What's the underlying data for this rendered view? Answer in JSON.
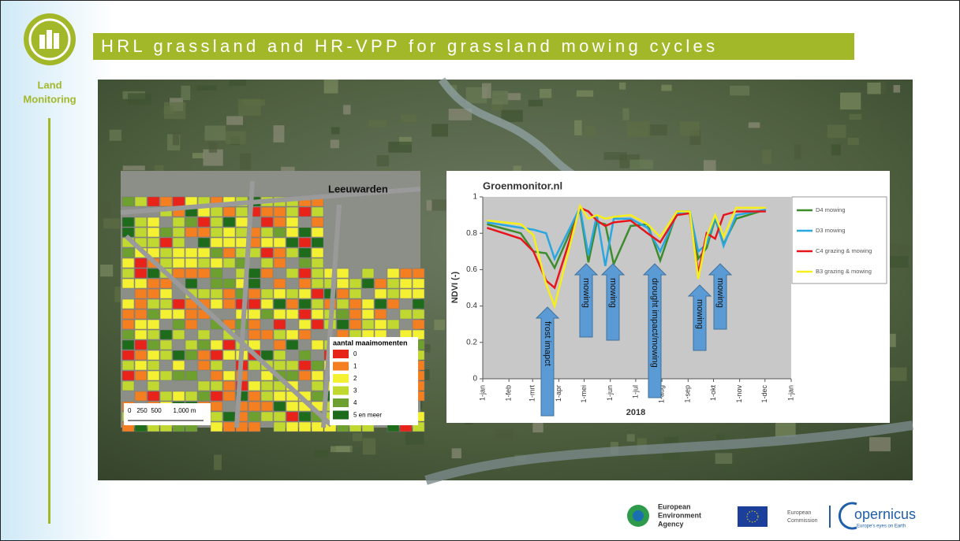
{
  "header": {
    "title": "HRL grassland and HR-VPP for grassland mowing cycles"
  },
  "sidebar": {
    "label_lines": [
      "Land",
      "Monitoring"
    ]
  },
  "map": {
    "city": "Leeuwarden",
    "legend": {
      "title": "aantal maaimomenten",
      "items": [
        {
          "label": "0",
          "color": "#e8231a"
        },
        {
          "label": "1",
          "color": "#f47f20"
        },
        {
          "label": "2",
          "color": "#f4f032"
        },
        {
          "label": "3",
          "color": "#c1d831"
        },
        {
          "label": "4",
          "color": "#6ea02f"
        },
        {
          "label": "5 en meer",
          "color": "#1f6b1c"
        }
      ]
    },
    "scale_labels": [
      "0",
      "250",
      "500",
      "1,000 m"
    ]
  },
  "chart_data": {
    "type": "line",
    "title": "Groenmonitor.nl",
    "y_label": "NDVI (-)",
    "x_label": "2018",
    "x": [
      5,
      45,
      60,
      75,
      85,
      115,
      125,
      135,
      145,
      155,
      175,
      195,
      210,
      230,
      245,
      255,
      265,
      275,
      285,
      300,
      335
    ],
    "xlim": [
      0,
      365
    ],
    "xticks": [
      {
        "value": 0,
        "label": "1-jan"
      },
      {
        "value": 31,
        "label": "1-feb"
      },
      {
        "value": 59,
        "label": "1-mrt"
      },
      {
        "value": 90,
        "label": "1-apr"
      },
      {
        "value": 120,
        "label": "1-mei"
      },
      {
        "value": 151,
        "label": "1-jun"
      },
      {
        "value": 181,
        "label": "1-jul"
      },
      {
        "value": 212,
        "label": "1-aug"
      },
      {
        "value": 243,
        "label": "1-sep"
      },
      {
        "value": 273,
        "label": "1-okt"
      },
      {
        "value": 304,
        "label": "1-nov"
      },
      {
        "value": 334,
        "label": "1-dec"
      },
      {
        "value": 365,
        "label": "1-jan"
      }
    ],
    "ylim": [
      0,
      1
    ],
    "yticks": [
      0,
      0.2,
      0.4,
      0.6,
      0.8,
      1
    ],
    "series": [
      {
        "name": "D4 mowing",
        "color": "#3c8c2e",
        "values": [
          0.85,
          0.8,
          0.7,
          0.69,
          0.61,
          0.93,
          0.64,
          0.86,
          0.85,
          0.63,
          0.84,
          0.85,
          0.65,
          0.92,
          0.92,
          0.66,
          0.72,
          0.88,
          0.74,
          0.88,
          0.93
        ]
      },
      {
        "name": "D3 mowing",
        "color": "#2aa7e0",
        "values": [
          0.86,
          0.83,
          0.82,
          0.8,
          0.66,
          0.94,
          0.68,
          0.9,
          0.62,
          0.88,
          0.88,
          0.83,
          0.7,
          0.91,
          0.92,
          0.7,
          0.74,
          0.89,
          0.73,
          0.9,
          0.93
        ]
      },
      {
        "name": "C4 grazing & mowing",
        "color": "#e8141b",
        "values": [
          0.83,
          0.77,
          0.7,
          0.54,
          0.5,
          0.94,
          0.92,
          0.87,
          0.84,
          0.86,
          0.87,
          0.8,
          0.75,
          0.9,
          0.91,
          0.58,
          0.8,
          0.77,
          0.9,
          0.92,
          0.92
        ]
      },
      {
        "name": "B3 grazing & mowing",
        "color": "#f7ef1a",
        "values": [
          0.87,
          0.85,
          0.79,
          0.52,
          0.4,
          0.95,
          0.88,
          0.9,
          0.88,
          0.89,
          0.9,
          0.85,
          0.78,
          0.92,
          0.92,
          0.55,
          0.78,
          0.9,
          0.78,
          0.94,
          0.94
        ]
      }
    ],
    "annotations": [
      "frost imapct",
      "mowing",
      "mowing",
      "drought impact/mowing",
      "mowing",
      "mowing"
    ]
  },
  "footer": {
    "eea_lines": [
      "European",
      "Environment",
      "Agency"
    ],
    "ec_lines": [
      "European",
      "Commission"
    ],
    "copernicus": "opernicus",
    "copernicus_tagline": "Europe's eyes on Earth"
  }
}
